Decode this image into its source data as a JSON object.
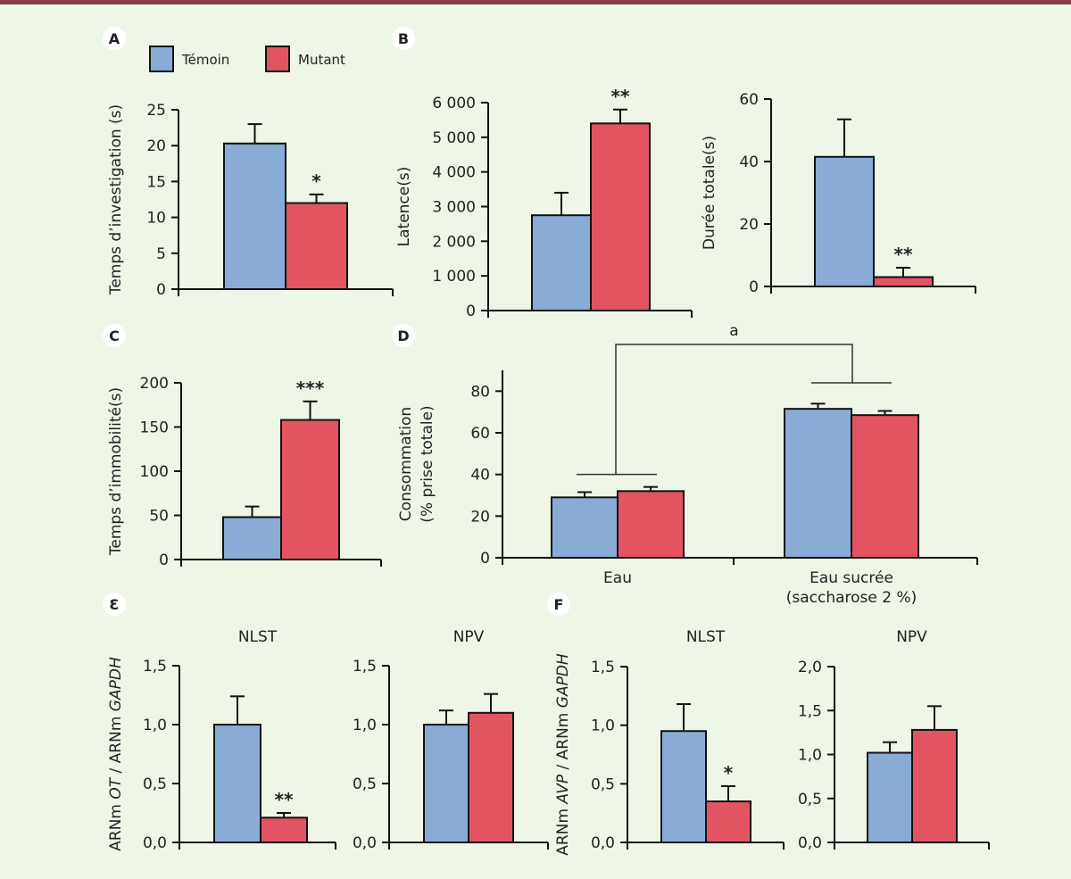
{
  "colors": {
    "temoin": "#88acd6",
    "mutant": "#e35462",
    "axis": "#111111",
    "background": "#eef6e8",
    "topbar": "#8b3d4c"
  },
  "legend": [
    {
      "label": "Témoin",
      "key": "temoin"
    },
    {
      "label": "Mutant",
      "key": "mutant"
    }
  ],
  "chart_data": [
    {
      "id": "A",
      "panel_label": "A",
      "type": "bar",
      "title": "",
      "ylabel": "Temps d’investigation (s)",
      "ylim": [
        0,
        25
      ],
      "yticks": [
        "0",
        "5",
        "10",
        "15",
        "20",
        "25"
      ],
      "ytick_values": [
        0,
        5,
        10,
        15,
        20,
        25
      ],
      "categories": [
        ""
      ],
      "series": [
        {
          "name": "Témoin",
          "values": [
            20.3
          ],
          "errors": [
            2.7
          ]
        },
        {
          "name": "Mutant",
          "values": [
            12.0
          ],
          "errors": [
            1.2
          ]
        }
      ],
      "annotations": [
        {
          "text": "*",
          "over": "Mutant"
        }
      ]
    },
    {
      "id": "B1",
      "panel_label": "B",
      "type": "bar",
      "title": "",
      "ylabel": "Latence(s)",
      "ylim": [
        0,
        6000
      ],
      "yticks": [
        "0",
        "1 000",
        "2 000",
        "3 000",
        "4 000",
        "5 000",
        "6 000"
      ],
      "ytick_values": [
        0,
        1000,
        2000,
        3000,
        4000,
        5000,
        6000
      ],
      "categories": [
        ""
      ],
      "series": [
        {
          "name": "Témoin",
          "values": [
            2750
          ],
          "errors": [
            650
          ]
        },
        {
          "name": "Mutant",
          "values": [
            5400
          ],
          "errors": [
            400
          ]
        }
      ],
      "annotations": [
        {
          "text": "**",
          "over": "Mutant"
        }
      ]
    },
    {
      "id": "B2",
      "panel_label": "",
      "type": "bar",
      "title": "",
      "ylabel": "Durée totale(s)",
      "ylim": [
        0,
        60
      ],
      "yticks": [
        "0",
        "20",
        "40",
        "60"
      ],
      "ytick_values": [
        0,
        20,
        40,
        60
      ],
      "categories": [
        ""
      ],
      "series": [
        {
          "name": "Témoin",
          "values": [
            41.5
          ],
          "errors": [
            12
          ]
        },
        {
          "name": "Mutant",
          "values": [
            3.0
          ],
          "errors": [
            3.0
          ]
        }
      ],
      "annotations": [
        {
          "text": "**",
          "over": "Mutant"
        }
      ]
    },
    {
      "id": "C",
      "panel_label": "C",
      "type": "bar",
      "title": "",
      "ylabel": "Temps d’immobilité(s)",
      "ylim": [
        0,
        200
      ],
      "yticks": [
        "0",
        "50",
        "100",
        "150",
        "200"
      ],
      "ytick_values": [
        0,
        50,
        100,
        150,
        200
      ],
      "categories": [
        ""
      ],
      "series": [
        {
          "name": "Témoin",
          "values": [
            48
          ],
          "errors": [
            12
          ]
        },
        {
          "name": "Mutant",
          "values": [
            158
          ],
          "errors": [
            21
          ]
        }
      ],
      "annotations": [
        {
          "text": "***",
          "over": "Mutant"
        }
      ]
    },
    {
      "id": "D",
      "panel_label": "D",
      "type": "bar",
      "title": "",
      "ylabel": "Consommation|(% prise totale)",
      "ylim": [
        0,
        90
      ],
      "yticks": [
        "0",
        "20",
        "40",
        "60",
        "80"
      ],
      "ytick_values": [
        0,
        20,
        40,
        60,
        80
      ],
      "categories": [
        "Eau",
        "Eau sucrée|(saccharose 2 %)"
      ],
      "series": [
        {
          "name": "Témoin",
          "values": [
            29,
            71.5
          ],
          "errors": [
            2.5,
            2.5
          ]
        },
        {
          "name": "Mutant",
          "values": [
            32,
            68.5
          ],
          "errors": [
            2.0,
            2.0
          ]
        }
      ],
      "annotations": [
        {
          "text": "a",
          "type": "bracket",
          "between": [
            "Eau",
            "Eau sucrée"
          ]
        }
      ]
    },
    {
      "id": "E1",
      "panel_label": "Ɛ",
      "type": "bar",
      "title": "NLST",
      "ylabel": "ARNm OT / ARNm GAPDH",
      "ylim": [
        0,
        1.5
      ],
      "yticks": [
        "0,0",
        "0,5",
        "1,0",
        "1,5"
      ],
      "ytick_values": [
        0,
        0.5,
        1.0,
        1.5
      ],
      "categories": [
        ""
      ],
      "series": [
        {
          "name": "Témoin",
          "values": [
            1.0
          ],
          "errors": [
            0.24
          ]
        },
        {
          "name": "Mutant",
          "values": [
            0.21
          ],
          "errors": [
            0.04
          ]
        }
      ],
      "annotations": [
        {
          "text": "**",
          "over": "Mutant"
        }
      ]
    },
    {
      "id": "E2",
      "panel_label": "",
      "type": "bar",
      "title": "NPV",
      "ylabel": "",
      "ylim": [
        0,
        1.5
      ],
      "yticks": [
        "0,0",
        "0,5",
        "1,0",
        "1,5"
      ],
      "ytick_values": [
        0,
        0.5,
        1.0,
        1.5
      ],
      "categories": [
        ""
      ],
      "series": [
        {
          "name": "Témoin",
          "values": [
            1.0
          ],
          "errors": [
            0.12
          ]
        },
        {
          "name": "Mutant",
          "values": [
            1.1
          ],
          "errors": [
            0.16
          ]
        }
      ],
      "annotations": []
    },
    {
      "id": "F1",
      "panel_label": "F",
      "type": "bar",
      "title": "NLST",
      "ylabel": "ARNm AVP / ARNm GAPDH",
      "ylim": [
        0,
        1.5
      ],
      "yticks": [
        "0,0",
        "0,5",
        "1,0",
        "1,5"
      ],
      "ytick_values": [
        0,
        0.5,
        1.0,
        1.5
      ],
      "categories": [
        ""
      ],
      "series": [
        {
          "name": "Témoin",
          "values": [
            0.95
          ],
          "errors": [
            0.23
          ]
        },
        {
          "name": "Mutant",
          "values": [
            0.35
          ],
          "errors": [
            0.13
          ]
        }
      ],
      "annotations": [
        {
          "text": "*",
          "over": "Mutant"
        }
      ]
    },
    {
      "id": "F2",
      "panel_label": "",
      "type": "bar",
      "title": "NPV",
      "ylabel": "",
      "ylim": [
        0,
        2.0
      ],
      "yticks": [
        "0,0",
        "0,5",
        "1,0",
        "1,5",
        "2,0"
      ],
      "ytick_values": [
        0,
        0.5,
        1.0,
        1.5,
        2.0
      ],
      "categories": [
        ""
      ],
      "series": [
        {
          "name": "Témoin",
          "values": [
            1.02
          ],
          "errors": [
            0.12
          ]
        },
        {
          "name": "Mutant",
          "values": [
            1.28
          ],
          "errors": [
            0.27
          ]
        }
      ],
      "annotations": []
    }
  ]
}
